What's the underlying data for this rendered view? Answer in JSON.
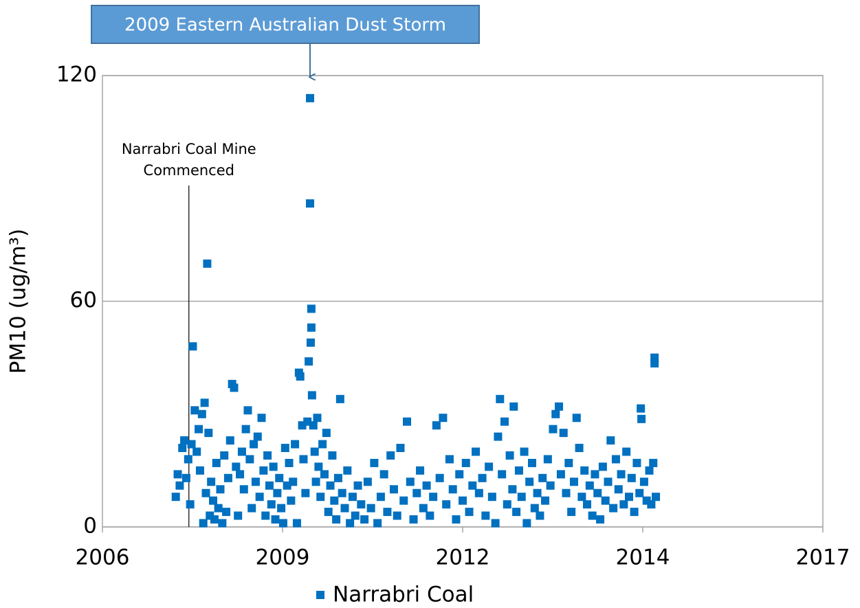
{
  "chart_data": {
    "type": "scatter",
    "ylabel": "PM10 (ug/m³)",
    "xlim": [
      2006,
      2017
    ],
    "xticks": [
      2006,
      {
        "value": 2008.75,
        "label": "2009"
      },
      {
        "value": 2011.5,
        "label": "2012"
      },
      {
        "value": 2014.25,
        "label": "2014"
      },
      2017
    ],
    "ylim": [
      0,
      120
    ],
    "yticks": [
      0,
      60,
      120
    ],
    "grid": true,
    "legend": "bottom",
    "annotations": [
      {
        "text": "2009 Eastern Australian Dust Storm",
        "x": 2009.17
      },
      {
        "text": [
          "Narrabri Coal Mine",
          "Commenced"
        ],
        "x": 2007.32
      }
    ],
    "series": [
      {
        "name": "Narrabri Coal",
        "color": "#0070c0",
        "x": [
          2007.12,
          2007.15,
          2007.18,
          2007.22,
          2007.25,
          2007.28,
          2007.31,
          2007.34,
          2007.36,
          2007.38,
          2007.41,
          2007.44,
          2007.47,
          2007.49,
          2007.52,
          2007.54,
          2007.56,
          2007.58,
          2007.6,
          2007.62,
          2007.64,
          2007.66,
          2007.69,
          2007.71,
          2007.74,
          2007.77,
          2007.8,
          2007.83,
          2007.86,
          2007.89,
          2007.92,
          2007.95,
          2007.98,
          2008.01,
          2008.04,
          2008.07,
          2008.1,
          2008.13,
          2008.16,
          2008.19,
          2008.22,
          2008.25,
          2008.28,
          2008.31,
          2008.34,
          2008.37,
          2008.4,
          2008.43,
          2008.46,
          2008.49,
          2008.52,
          2008.55,
          2008.58,
          2008.61,
          2008.64,
          2008.67,
          2008.7,
          2008.73,
          2008.76,
          2008.79,
          2008.82,
          2008.85,
          2008.88,
          2008.91,
          2008.94,
          2008.97,
          2009.0,
          2009.02,
          2009.05,
          2009.07,
          2009.1,
          2009.13,
          2009.15,
          2009.17,
          2009.17,
          2009.18,
          2009.19,
          2009.19,
          2009.2,
          2009.22,
          2009.24,
          2009.26,
          2009.28,
          2009.3,
          2009.33,
          2009.36,
          2009.39,
          2009.42,
          2009.45,
          2009.48,
          2009.51,
          2009.54,
          2009.57,
          2009.6,
          2009.63,
          2009.66,
          2009.7,
          2009.74,
          2009.78,
          2009.82,
          2009.86,
          2009.9,
          2009.95,
          2010.0,
          2010.05,
          2010.1,
          2010.15,
          2010.2,
          2010.25,
          2010.3,
          2010.35,
          2010.4,
          2010.45,
          2010.5,
          2010.55,
          2010.6,
          2010.65,
          2010.7,
          2010.75,
          2010.8,
          2010.85,
          2010.9,
          2010.95,
          2011.0,
          2011.05,
          2011.1,
          2011.15,
          2011.2,
          2011.25,
          2011.3,
          2011.35,
          2011.4,
          2011.45,
          2011.5,
          2011.55,
          2011.6,
          2011.65,
          2011.7,
          2011.75,
          2011.8,
          2011.85,
          2011.9,
          2011.95,
          2012.0,
          2012.04,
          2012.07,
          2012.1,
          2012.14,
          2012.18,
          2012.22,
          2012.26,
          2012.28,
          2012.32,
          2012.36,
          2012.4,
          2012.44,
          2012.48,
          2012.52,
          2012.56,
          2012.6,
          2012.64,
          2012.68,
          2012.72,
          2012.76,
          2012.8,
          2012.84,
          2012.88,
          2012.92,
          2012.97,
          2013.0,
          2013.04,
          2013.08,
          2013.12,
          2013.16,
          2013.2,
          2013.24,
          2013.28,
          2013.32,
          2013.36,
          2013.4,
          2013.44,
          2013.48,
          2013.52,
          2013.56,
          2013.6,
          2013.64,
          2013.68,
          2013.72,
          2013.76,
          2013.8,
          2013.84,
          2013.88,
          2013.92,
          2013.96,
          2014.0,
          2014.04,
          2014.08,
          2014.12,
          2014.16,
          2014.2,
          2014.22,
          2014.23,
          2014.27,
          2014.31,
          2014.35,
          2014.38,
          2014.41,
          2014.43,
          2014.43,
          2014.45
        ],
        "values": [
          8,
          14,
          11,
          21,
          23,
          13,
          18,
          6,
          22,
          48,
          31,
          20,
          26,
          15,
          30,
          1,
          33,
          9,
          70,
          25,
          3,
          12,
          7,
          2,
          17,
          5,
          10,
          1,
          19,
          4,
          13,
          23,
          38,
          37,
          16,
          3,
          14,
          20,
          10,
          26,
          31,
          18,
          5,
          22,
          12,
          24,
          8,
          29,
          15,
          3,
          19,
          11,
          6,
          16,
          2,
          9,
          13,
          5,
          1,
          21,
          11,
          17,
          7,
          12,
          22,
          1,
          41,
          40,
          27,
          18,
          9,
          28,
          44,
          114,
          86,
          49,
          58,
          53,
          35,
          27,
          20,
          12,
          29,
          16,
          8,
          22,
          14,
          25,
          4,
          11,
          19,
          7,
          2,
          13,
          34,
          9,
          5,
          15,
          1,
          8,
          3,
          11,
          6,
          2,
          12,
          5,
          17,
          1,
          8,
          14,
          4,
          19,
          10,
          3,
          21,
          7,
          28,
          12,
          2,
          9,
          15,
          5,
          11,
          3,
          8,
          27,
          13,
          29,
          6,
          18,
          10,
          2,
          14,
          7,
          17,
          4,
          11,
          20,
          9,
          13,
          3,
          16,
          8,
          1,
          24,
          34,
          14,
          28,
          6,
          19,
          10,
          32,
          4,
          15,
          8,
          20,
          1,
          12,
          17,
          5,
          9,
          3,
          13,
          7,
          18,
          11,
          26,
          30,
          32,
          14,
          25,
          9,
          17,
          4,
          12,
          29,
          21,
          8,
          15,
          6,
          11,
          3,
          14,
          9,
          2,
          16,
          7,
          12,
          23,
          5,
          18,
          10,
          14,
          6,
          20,
          8,
          13,
          4,
          17,
          9,
          31.5,
          28.7,
          12,
          7,
          15,
          6,
          17,
          45,
          43.5,
          8
        ]
      }
    ]
  }
}
